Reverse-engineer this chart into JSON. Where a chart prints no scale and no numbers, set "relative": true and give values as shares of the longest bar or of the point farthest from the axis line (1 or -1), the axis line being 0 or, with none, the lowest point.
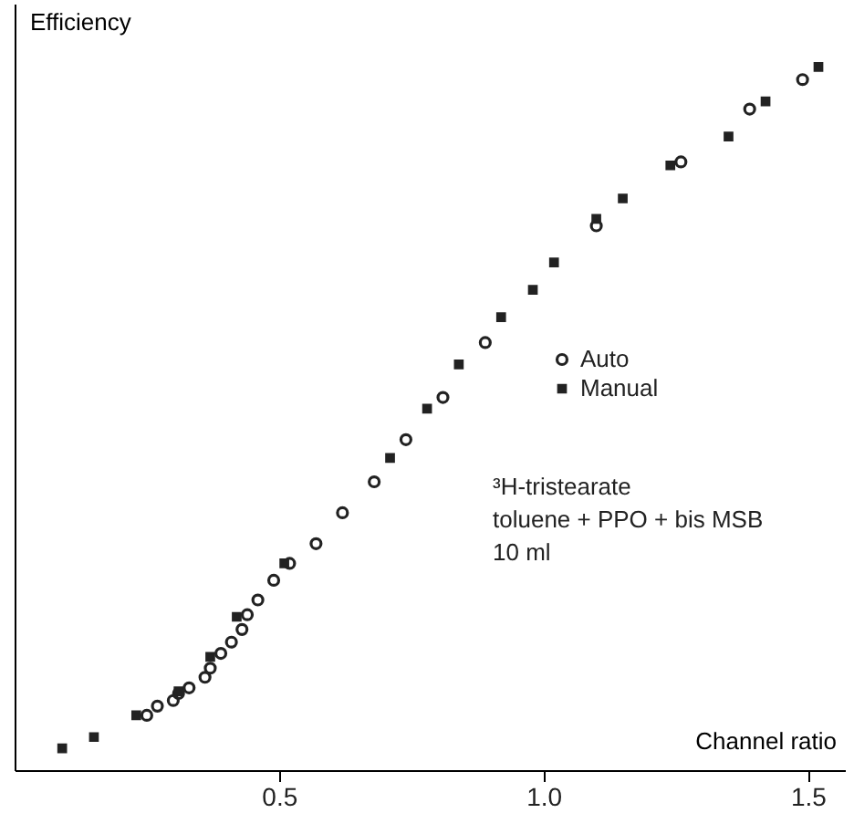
{
  "chart_data": {
    "type": "scatter",
    "xlabel": "Channel ratio",
    "ylabel": "Efficiency",
    "relative": true,
    "xlim": [
      0,
      1.57
    ],
    "xticks": [
      0.5,
      {
        "value": 1.0,
        "label": "1.0"
      },
      1.5
    ],
    "legend": "right",
    "grid": false,
    "annotations": [
      "³H-tristearate",
      "toluene + PPO + bis MSB",
      "10 ml"
    ],
    "series": [
      {
        "name": "Auto",
        "color": "#222222",
        "marker": "circle",
        "x": [
          0.25,
          0.27,
          0.3,
          0.31,
          0.33,
          0.36,
          0.37,
          0.39,
          0.41,
          0.43,
          0.44,
          0.46,
          0.49,
          0.52,
          0.57,
          0.62,
          0.68,
          0.74,
          0.81,
          0.89,
          1.1,
          1.26,
          1.39,
          1.49
        ],
        "values": [
          0.078,
          0.091,
          0.099,
          0.109,
          0.117,
          0.132,
          0.145,
          0.166,
          0.182,
          0.2,
          0.221,
          0.242,
          0.27,
          0.294,
          0.322,
          0.366,
          0.41,
          0.47,
          0.53,
          0.608,
          0.774,
          0.865,
          0.94,
          0.982
        ]
      },
      {
        "name": "Manual",
        "color": "#222222",
        "marker": "square",
        "x": [
          0.09,
          0.15,
          0.23,
          0.31,
          0.37,
          0.42,
          0.51,
          0.71,
          0.78,
          0.84,
          0.92,
          0.98,
          1.02,
          1.1,
          1.15,
          1.24,
          1.35,
          1.42,
          1.52
        ],
        "values": [
          0.031,
          0.047,
          0.078,
          0.112,
          0.161,
          0.218,
          0.294,
          0.444,
          0.514,
          0.577,
          0.644,
          0.683,
          0.722,
          0.784,
          0.813,
          0.86,
          0.901,
          0.951,
          1.0
        ]
      }
    ]
  }
}
